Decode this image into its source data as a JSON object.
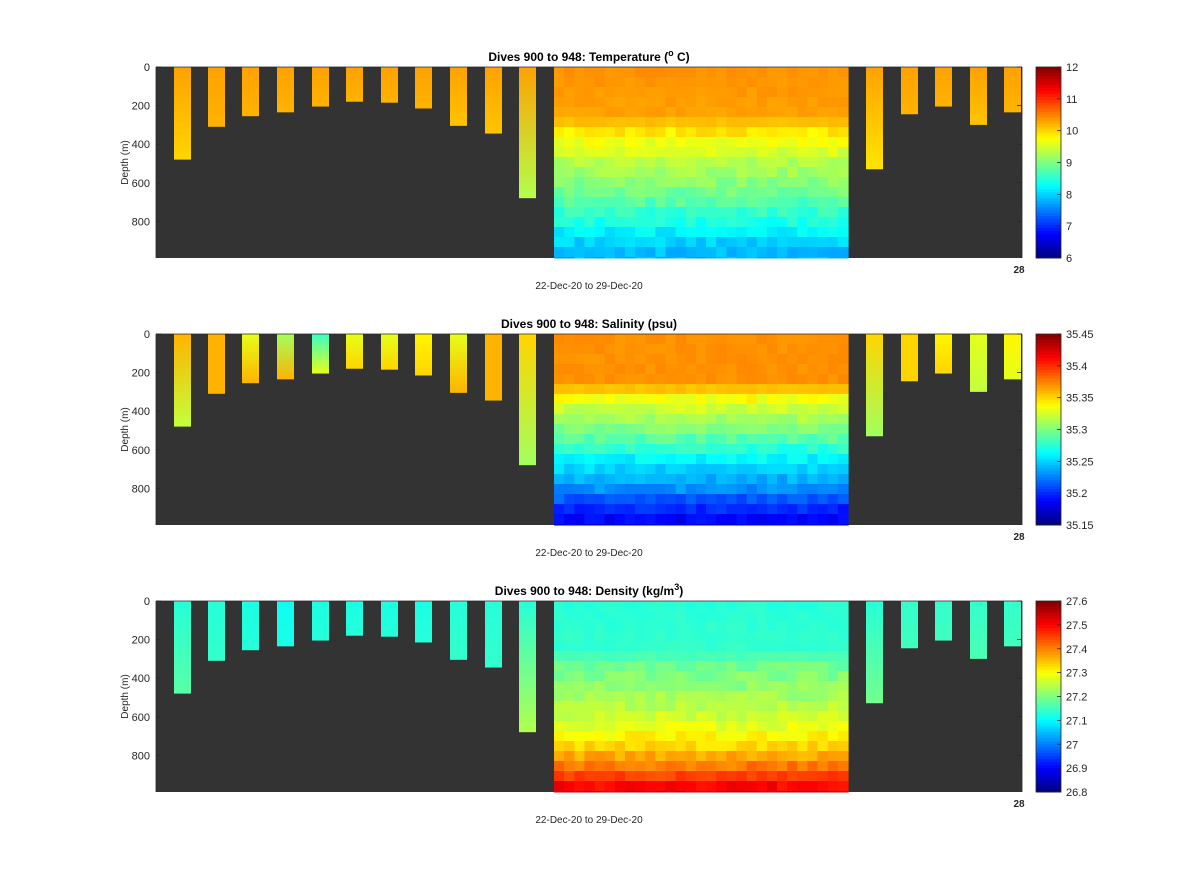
{
  "chart_data": [
    {
      "type": "heatmap",
      "variable": "temperature",
      "title_text": "Dives 900 to 948: Temperature (",
      "title_sup": "o",
      "title_tail": " C)",
      "ylabel": "Depth (m)",
      "xlabel": "22-Dec-20 to 29-Dec-20",
      "x_end_label": "28",
      "ylim": [
        0,
        990
      ],
      "y_reversed": true,
      "yticks": [
        0,
        200,
        400,
        600,
        800
      ],
      "colorbar": {
        "min": 6,
        "max": 12,
        "ticks": [
          "6",
          "7",
          "8",
          "9",
          "10",
          "11",
          "12"
        ],
        "colormap": "jet"
      },
      "background_color": "#333333",
      "isolated_profiles": [
        {
          "max_depth": 480,
          "surface_value": 10.3,
          "bottom_value": 10.0
        },
        {
          "max_depth": 310,
          "surface_value": 10.3,
          "bottom_value": 10.2
        },
        {
          "max_depth": 255,
          "surface_value": 10.3,
          "bottom_value": 10.2
        },
        {
          "max_depth": 235,
          "surface_value": 10.3,
          "bottom_value": 10.2
        },
        {
          "max_depth": 205,
          "surface_value": 10.3,
          "bottom_value": 10.2
        },
        {
          "max_depth": 180,
          "surface_value": 10.3,
          "bottom_value": 10.2
        },
        {
          "max_depth": 185,
          "surface_value": 10.3,
          "bottom_value": 10.2
        },
        {
          "max_depth": 215,
          "surface_value": 10.3,
          "bottom_value": 10.2
        },
        {
          "max_depth": 305,
          "surface_value": 10.3,
          "bottom_value": 10.1
        },
        {
          "max_depth": 345,
          "surface_value": 10.3,
          "bottom_value": 10.1
        },
        {
          "max_depth": 680,
          "surface_value": 10.3,
          "bottom_value": 9.3
        },
        {
          "max_depth": 530,
          "surface_value": 10.3,
          "bottom_value": 9.9
        },
        {
          "max_depth": 245,
          "surface_value": 10.3,
          "bottom_value": 10.2
        },
        {
          "max_depth": 205,
          "surface_value": 10.3,
          "bottom_value": 10.2
        },
        {
          "max_depth": 300,
          "surface_value": 10.3,
          "bottom_value": 10.1
        },
        {
          "max_depth": 235,
          "surface_value": 10.3,
          "bottom_value": 10.2
        }
      ],
      "dense_block": {
        "profiles": 29,
        "max_depth": 990,
        "depth_profile": [
          {
            "depth": 0,
            "value": 10.4
          },
          {
            "depth": 250,
            "value": 10.3
          },
          {
            "depth": 350,
            "value": 9.8
          },
          {
            "depth": 500,
            "value": 9.3
          },
          {
            "depth": 650,
            "value": 8.9
          },
          {
            "depth": 800,
            "value": 8.4
          },
          {
            "depth": 900,
            "value": 8.0
          },
          {
            "depth": 990,
            "value": 7.8
          }
        ]
      }
    },
    {
      "type": "heatmap",
      "variable": "salinity",
      "title_text": "Dives 900 to 948: Salinity (psu)",
      "title_sup": "",
      "title_tail": "",
      "ylabel": "Depth (m)",
      "xlabel": "22-Dec-20 to 29-Dec-20",
      "x_end_label": "28",
      "ylim": [
        0,
        990
      ],
      "y_reversed": true,
      "yticks": [
        0,
        200,
        400,
        600,
        800
      ],
      "colorbar": {
        "min": 35.15,
        "max": 35.45,
        "ticks": [
          "35.15",
          "35.2",
          "35.25",
          "35.3",
          "35.35",
          "35.4",
          "35.45"
        ],
        "colormap": "jet"
      },
      "background_color": "#333333",
      "isolated_profiles": [
        {
          "max_depth": 480,
          "surface_value": 35.36,
          "bottom_value": 35.32
        },
        {
          "max_depth": 310,
          "surface_value": 35.36,
          "bottom_value": 35.36
        },
        {
          "max_depth": 255,
          "surface_value": 35.33,
          "bottom_value": 35.36
        },
        {
          "max_depth": 235,
          "surface_value": 35.31,
          "bottom_value": 35.36
        },
        {
          "max_depth": 205,
          "surface_value": 35.28,
          "bottom_value": 35.33
        },
        {
          "max_depth": 180,
          "surface_value": 35.33,
          "bottom_value": 35.35
        },
        {
          "max_depth": 185,
          "surface_value": 35.33,
          "bottom_value": 35.35
        },
        {
          "max_depth": 215,
          "surface_value": 35.34,
          "bottom_value": 35.35
        },
        {
          "max_depth": 305,
          "surface_value": 35.33,
          "bottom_value": 35.36
        },
        {
          "max_depth": 345,
          "surface_value": 35.36,
          "bottom_value": 35.36
        },
        {
          "max_depth": 680,
          "surface_value": 35.35,
          "bottom_value": 35.31
        },
        {
          "max_depth": 530,
          "surface_value": 35.35,
          "bottom_value": 35.31
        },
        {
          "max_depth": 245,
          "surface_value": 35.35,
          "bottom_value": 35.35
        },
        {
          "max_depth": 205,
          "surface_value": 35.34,
          "bottom_value": 35.35
        },
        {
          "max_depth": 300,
          "surface_value": 35.33,
          "bottom_value": 35.32
        },
        {
          "max_depth": 235,
          "surface_value": 35.34,
          "bottom_value": 35.33
        }
      ],
      "dense_block": {
        "profiles": 29,
        "max_depth": 990,
        "depth_profile": [
          {
            "depth": 0,
            "value": 35.37
          },
          {
            "depth": 250,
            "value": 35.37
          },
          {
            "depth": 350,
            "value": 35.33
          },
          {
            "depth": 500,
            "value": 35.3
          },
          {
            "depth": 650,
            "value": 35.26
          },
          {
            "depth": 800,
            "value": 35.23
          },
          {
            "depth": 900,
            "value": 35.2
          },
          {
            "depth": 990,
            "value": 35.18
          }
        ]
      }
    },
    {
      "type": "heatmap",
      "variable": "density",
      "title_text": "Dives 900 to 948: Density (kg/m",
      "title_sup": "3",
      "title_tail": ")",
      "ylabel": "Depth (m)",
      "xlabel": "22-Dec-20 to 29-Dec-20",
      "x_end_label": "28",
      "ylim": [
        0,
        990
      ],
      "y_reversed": true,
      "yticks": [
        0,
        200,
        400,
        600,
        800
      ],
      "colorbar": {
        "min": 26.8,
        "max": 27.6,
        "ticks": [
          "26.8",
          "26.9",
          "27",
          "27.1",
          "27.2",
          "27.3",
          "27.4",
          "27.5",
          "27.6"
        ],
        "colormap": "jet"
      },
      "background_color": "#333333",
      "isolated_profiles": [
        {
          "max_depth": 480,
          "surface_value": 27.13,
          "bottom_value": 27.17
        },
        {
          "max_depth": 310,
          "surface_value": 27.13,
          "bottom_value": 27.14
        },
        {
          "max_depth": 255,
          "surface_value": 27.12,
          "bottom_value": 27.13
        },
        {
          "max_depth": 235,
          "surface_value": 27.11,
          "bottom_value": 27.12
        },
        {
          "max_depth": 205,
          "surface_value": 27.12,
          "bottom_value": 27.13
        },
        {
          "max_depth": 180,
          "surface_value": 27.12,
          "bottom_value": 27.13
        },
        {
          "max_depth": 185,
          "surface_value": 27.12,
          "bottom_value": 27.13
        },
        {
          "max_depth": 215,
          "surface_value": 27.12,
          "bottom_value": 27.13
        },
        {
          "max_depth": 305,
          "surface_value": 27.13,
          "bottom_value": 27.14
        },
        {
          "max_depth": 345,
          "surface_value": 27.13,
          "bottom_value": 27.14
        },
        {
          "max_depth": 680,
          "surface_value": 27.13,
          "bottom_value": 27.24
        },
        {
          "max_depth": 530,
          "surface_value": 27.13,
          "bottom_value": 27.19
        },
        {
          "max_depth": 245,
          "surface_value": 27.14,
          "bottom_value": 27.15
        },
        {
          "max_depth": 205,
          "surface_value": 27.14,
          "bottom_value": 27.15
        },
        {
          "max_depth": 300,
          "surface_value": 27.14,
          "bottom_value": 27.16
        },
        {
          "max_depth": 235,
          "surface_value": 27.14,
          "bottom_value": 27.15
        }
      ],
      "dense_block": {
        "profiles": 29,
        "max_depth": 990,
        "depth_profile": [
          {
            "depth": 0,
            "value": 27.13
          },
          {
            "depth": 250,
            "value": 27.14
          },
          {
            "depth": 350,
            "value": 27.19
          },
          {
            "depth": 500,
            "value": 27.23
          },
          {
            "depth": 650,
            "value": 27.28
          },
          {
            "depth": 750,
            "value": 27.33
          },
          {
            "depth": 850,
            "value": 27.4
          },
          {
            "depth": 930,
            "value": 27.47
          },
          {
            "depth": 990,
            "value": 27.53
          }
        ]
      }
    }
  ]
}
